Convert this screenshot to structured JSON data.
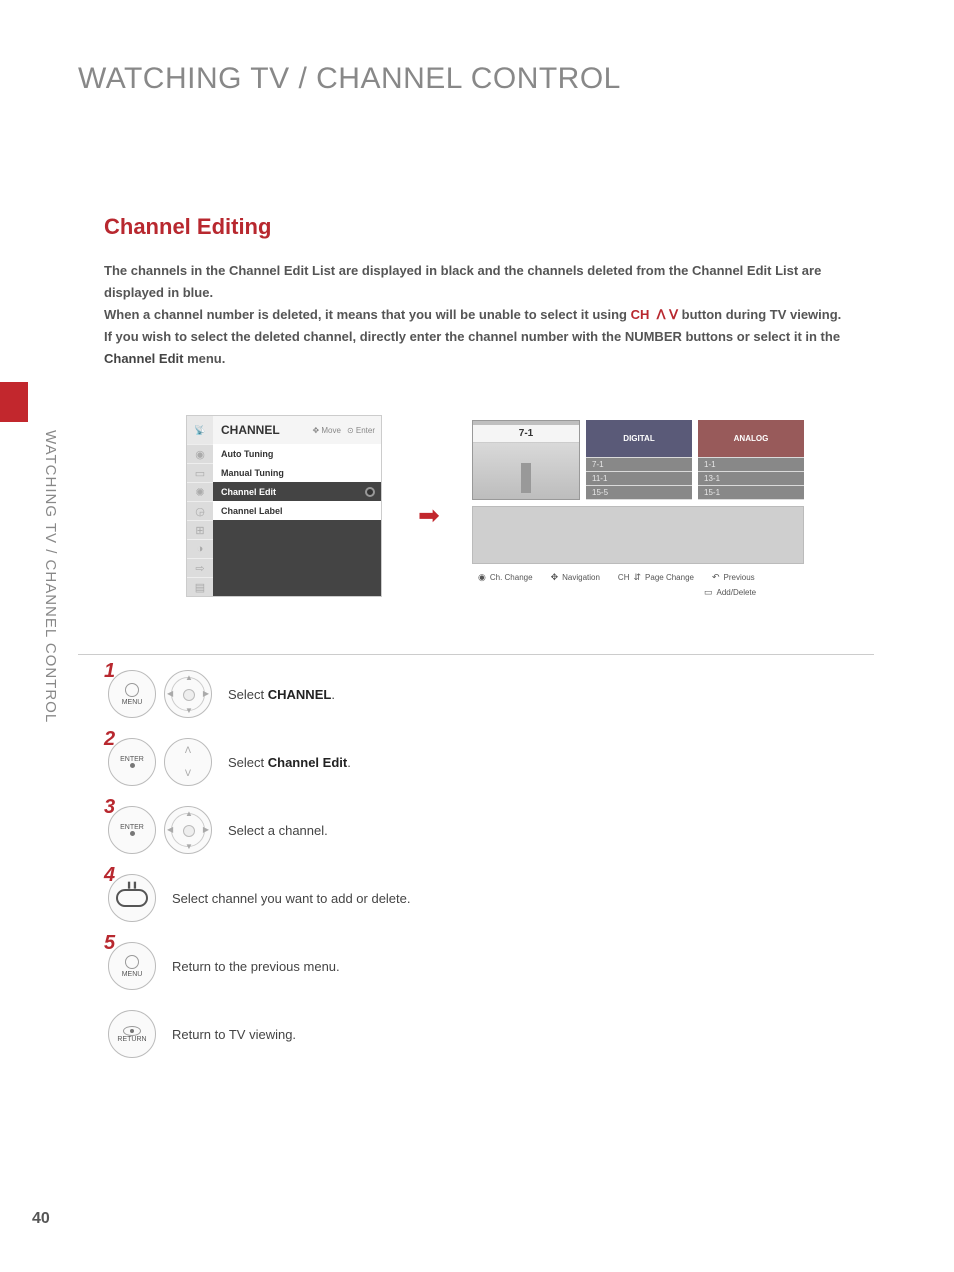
{
  "page_title": "WATCHING TV / CHANNEL CONTROL",
  "side_label": "WATCHING TV / CHANNEL CONTROL",
  "section_title": "Channel Editing",
  "intro": {
    "p1": "The channels in the Channel Edit List are displayed in black and the channels deleted from the Channel Edit List are displayed in blue.",
    "p2_a": "When a channel number is deleted, it means that you will be unable to select it using ",
    "p2_ch": "CH",
    "p2_b": " button during TV viewing.",
    "p3_a": "If you wish to select the deleted channel, directly enter the channel number with the NUMBER buttons or select it in the ",
    "p3_bold": "Channel Edit",
    "p3_b": " menu."
  },
  "menu": {
    "title": "CHANNEL",
    "hint_move": "Move",
    "hint_enter": "Enter",
    "items": [
      "Auto Tuning",
      "Manual Tuning",
      "Channel Edit",
      "Channel Label"
    ],
    "active_index": 2
  },
  "edit": {
    "preview_channel": "7-1",
    "digital_header": "DIGITAL",
    "analog_header": "ANALOG",
    "digital_list": [
      "7-1",
      "11-1",
      "15-5"
    ],
    "analog_list": [
      "1-1",
      "13-1",
      "15-1"
    ],
    "legend": {
      "ch_change": "Ch. Change",
      "navigation": "Navigation",
      "page_change": "Page Change",
      "page_change_prefix": "CH",
      "previous": "Previous",
      "add_delete": "Add/Delete"
    }
  },
  "steps": [
    {
      "num": "1",
      "buttons": [
        "menu",
        "nav"
      ],
      "text_a": "Select ",
      "text_b": "CHANNEL",
      "text_c": "."
    },
    {
      "num": "2",
      "buttons": [
        "enter",
        "updown"
      ],
      "text_a": "Select ",
      "text_b": "Channel Edit",
      "text_c": "."
    },
    {
      "num": "3",
      "buttons": [
        "enter",
        "nav"
      ],
      "text_a": "Select a channel.",
      "text_b": "",
      "text_c": ""
    },
    {
      "num": "4",
      "buttons": [
        "pill"
      ],
      "text_a": "Select channel you want to add or delete.",
      "text_b": "",
      "text_c": ""
    },
    {
      "num": "5",
      "buttons": [
        "menu"
      ],
      "text_a": "Return to the previous menu.",
      "text_b": "",
      "text_c": ""
    },
    {
      "num": "",
      "buttons": [
        "return"
      ],
      "text_a": "Return to TV viewing.",
      "text_b": "",
      "text_c": ""
    }
  ],
  "button_labels": {
    "menu": "MENU",
    "enter": "ENTER",
    "return": "RETURN"
  },
  "page_number": "40"
}
